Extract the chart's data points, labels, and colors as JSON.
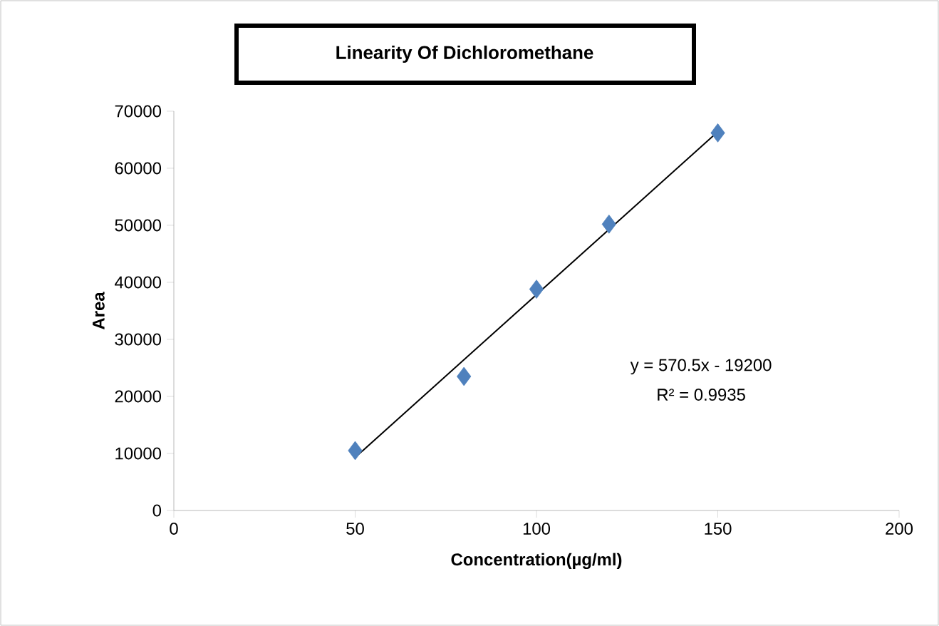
{
  "chart_data": {
    "type": "scatter",
    "title": "Linearity Of Dichloromethane",
    "xlabel": "Concentration(µg/ml)",
    "ylabel": "Area",
    "xlim": [
      0,
      200
    ],
    "xticks": [
      0,
      50,
      100,
      150,
      200
    ],
    "ylim": [
      0,
      70000
    ],
    "yticks": [
      0,
      10000,
      20000,
      30000,
      40000,
      50000,
      60000,
      70000
    ],
    "series": [
      {
        "marker": "diamond",
        "color": "#4f81bd",
        "x": [
          50,
          80,
          100,
          120,
          150
        ],
        "values": [
          10500,
          23500,
          38800,
          50200,
          66200
        ]
      },
      {
        "type": "line",
        "marker": "none",
        "line_style": "solid",
        "color": "#000000",
        "x": [
          50,
          150
        ],
        "values": [
          9300,
          66400
        ]
      }
    ],
    "annotations": [
      "y = 570.5x - 19200",
      "R² = 0.9935"
    ]
  }
}
